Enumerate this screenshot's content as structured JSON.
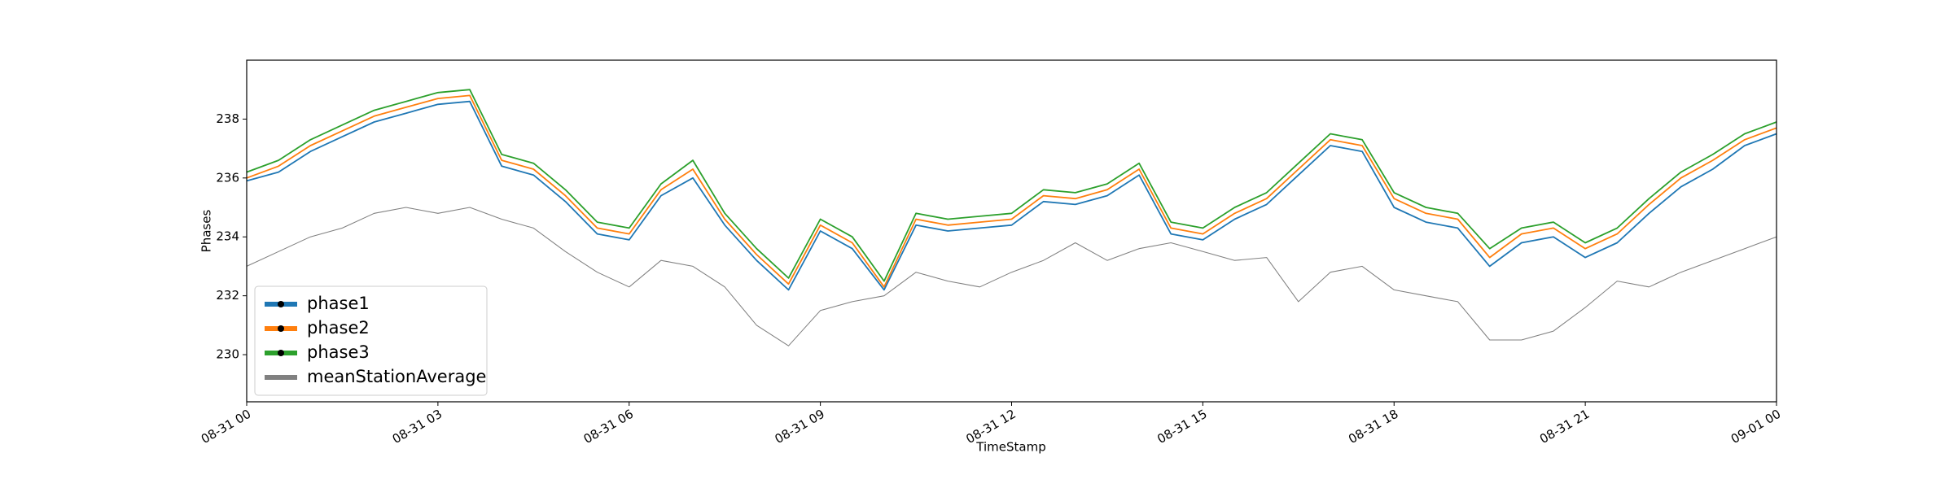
{
  "chart_data": {
    "type": "line",
    "xlabel": "TimeStamp",
    "ylabel": "Phases",
    "x": [
      0,
      0.5,
      1,
      1.5,
      2,
      2.5,
      3,
      3.5,
      4,
      4.5,
      5,
      5.5,
      6,
      6.5,
      7,
      7.5,
      8,
      8.5,
      9,
      9.5,
      10,
      10.5,
      11,
      11.5,
      12,
      12.5,
      13,
      13.5,
      14,
      14.5,
      15,
      15.5,
      16,
      16.5,
      17,
      17.5,
      18,
      18.5,
      19,
      19.5,
      20,
      20.5,
      21,
      21.5,
      22,
      22.5,
      23,
      23.5,
      24
    ],
    "series": [
      {
        "name": "phase1",
        "color": "#1f77b4",
        "values": [
          235.9,
          236.2,
          236.9,
          237.4,
          237.9,
          238.2,
          238.5,
          238.6,
          236.4,
          236.1,
          235.2,
          234.1,
          233.9,
          235.4,
          236.0,
          234.4,
          233.2,
          232.2,
          234.2,
          233.6,
          232.2,
          234.4,
          234.2,
          234.3,
          234.4,
          235.2,
          235.1,
          235.4,
          236.1,
          234.1,
          233.9,
          234.6,
          235.1,
          236.1,
          237.1,
          236.9,
          235.0,
          234.5,
          234.3,
          233.0,
          233.8,
          234.0,
          233.3,
          233.8,
          234.8,
          235.7,
          236.3,
          237.1,
          237.5
        ],
        "linewidth": 1.2
      },
      {
        "name": "phase2",
        "color": "#ff7f0e",
        "values": [
          236.0,
          236.4,
          237.1,
          237.6,
          238.1,
          238.4,
          238.7,
          238.8,
          236.6,
          236.3,
          235.4,
          234.3,
          234.1,
          235.6,
          236.3,
          234.6,
          233.4,
          232.4,
          234.4,
          233.8,
          232.3,
          234.6,
          234.4,
          234.5,
          234.6,
          235.4,
          235.3,
          235.6,
          236.3,
          234.3,
          234.1,
          234.8,
          235.3,
          236.3,
          237.3,
          237.1,
          235.3,
          234.8,
          234.6,
          233.3,
          234.1,
          234.3,
          233.6,
          234.1,
          235.1,
          236.0,
          236.6,
          237.3,
          237.7
        ],
        "linewidth": 1.2
      },
      {
        "name": "phase3",
        "color": "#2ca02c",
        "values": [
          236.2,
          236.6,
          237.3,
          237.8,
          238.3,
          238.6,
          238.9,
          239.0,
          236.8,
          236.5,
          235.6,
          234.5,
          234.3,
          235.8,
          236.6,
          234.8,
          233.6,
          232.6,
          234.6,
          234.0,
          232.5,
          234.8,
          234.6,
          234.7,
          234.8,
          235.6,
          235.5,
          235.8,
          236.5,
          234.5,
          234.3,
          235.0,
          235.5,
          236.5,
          237.5,
          237.3,
          235.5,
          235.0,
          234.8,
          233.6,
          234.3,
          234.5,
          233.8,
          234.3,
          235.3,
          236.2,
          236.8,
          237.5,
          237.9
        ],
        "linewidth": 1.2
      },
      {
        "name": "meanStationAverage",
        "color": "#808080",
        "values": [
          233.0,
          233.5,
          234.0,
          234.3,
          234.8,
          235.0,
          234.8,
          235.0,
          234.6,
          234.3,
          233.5,
          232.8,
          232.3,
          233.2,
          233.0,
          232.3,
          231.0,
          230.3,
          231.5,
          231.8,
          232.0,
          232.8,
          232.5,
          232.3,
          232.8,
          233.2,
          233.8,
          233.2,
          233.6,
          233.8,
          233.5,
          233.2,
          233.3,
          231.8,
          232.8,
          233.0,
          232.2,
          232.0,
          231.8,
          230.5,
          230.5,
          230.8,
          231.6,
          232.5,
          232.3,
          232.8,
          233.2,
          233.6,
          234.0
        ],
        "linewidth": 0.7
      }
    ],
    "xlim": [
      0,
      24
    ],
    "xticks": [
      {
        "value": 0,
        "label": "08-31 00"
      },
      {
        "value": 3,
        "label": "08-31 03"
      },
      {
        "value": 6,
        "label": "08-31 06"
      },
      {
        "value": 9,
        "label": "08-31 09"
      },
      {
        "value": 12,
        "label": "08-31 12"
      },
      {
        "value": 15,
        "label": "08-31 15"
      },
      {
        "value": 18,
        "label": "08-31 18"
      },
      {
        "value": 21,
        "label": "08-31 21"
      },
      {
        "value": 24,
        "label": "09-01 00"
      }
    ],
    "ylim": [
      228.4,
      240.0
    ],
    "yticks": [
      230,
      232,
      234,
      236,
      238
    ],
    "grid": false,
    "legend": "lower left"
  }
}
